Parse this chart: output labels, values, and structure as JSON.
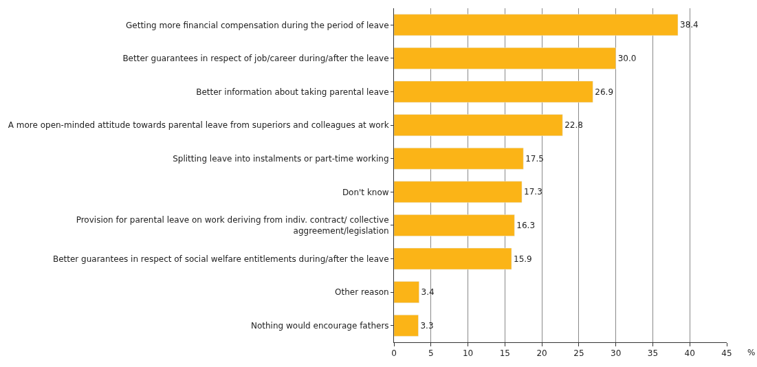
{
  "chart_data": {
    "type": "bar",
    "orientation": "horizontal",
    "xlabel": "%",
    "categories": [
      "Getting more financial compensation during the period of leave",
      "Better guarantees in respect of job/career during/after the leave",
      "Better information about taking parental leave",
      "A more open-minded attitude towards parental leave from superiors and colleagues at work",
      "Splitting leave into instalments or part-time working",
      "Don't know",
      "Provision for parental leave on work deriving from indiv. contract/ collective\naggreement/legislation",
      "Better guarantees in respect of social welfare entitlements during/after the leave",
      "Other reason",
      "Nothing would encourage fathers"
    ],
    "values": [
      38.4,
      30.0,
      26.9,
      22.8,
      17.5,
      17.3,
      16.3,
      15.9,
      3.4,
      3.3
    ],
    "value_labels": [
      "38.4",
      "30.0",
      "26.9",
      "22.8",
      "17.5",
      "17.3",
      "16.3",
      "15.9",
      "3.4",
      "3.3"
    ],
    "color": "#fbb417",
    "xlim": [
      0,
      45
    ],
    "xticks": [
      0,
      5,
      10,
      15,
      20,
      25,
      30,
      35,
      40,
      45
    ],
    "grid": "x"
  }
}
